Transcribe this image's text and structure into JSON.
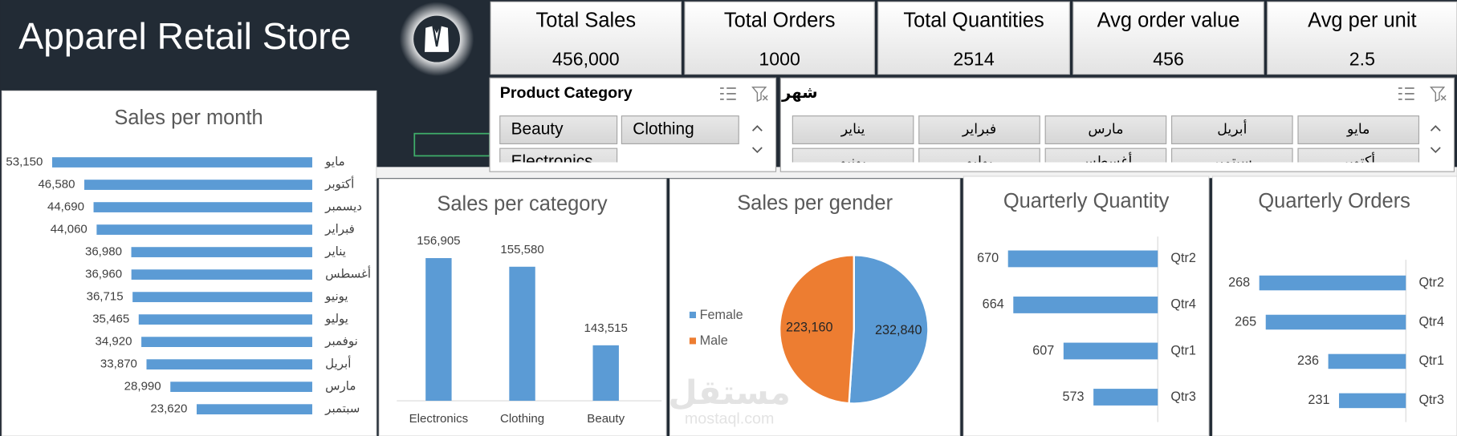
{
  "header": {
    "title": "Apparel Retail Store"
  },
  "kpis": [
    {
      "label": "Total Sales",
      "value": 456000,
      "value_label": "456,000"
    },
    {
      "label": "Total Orders",
      "value": 1000
    },
    {
      "label": "Total Quantities",
      "value": 2514
    },
    {
      "label": "Avg order value",
      "value": 456
    },
    {
      "label": "Avg per unit",
      "value": 2.5
    }
  ],
  "slicers": [
    {
      "title": "Product Category",
      "items": [
        "Beauty",
        "Clothing",
        "Electronics"
      ]
    },
    {
      "title": "شهر",
      "items": [
        "يناير",
        "فبراير",
        "مارس",
        "أبريل",
        "مايو",
        "يونيو",
        "يوليو",
        "أغسطس",
        "سبتمبر",
        "أكتوبر"
      ]
    }
  ],
  "watermark": {
    "arabic": "مستقل",
    "latin": "mostaql.com"
  },
  "chart_data": [
    {
      "type": "bar",
      "orientation": "horizontal",
      "title": "Sales per month",
      "categories": [
        "مايو",
        "أكتوبر",
        "ديسمبر",
        "فبراير",
        "يناير",
        "أغسطس",
        "يونيو",
        "يوليو",
        "نوفمبر",
        "أبريل",
        "مارس",
        "سبتمبر"
      ],
      "values": [
        53150,
        46580,
        44690,
        44060,
        36980,
        36960,
        36715,
        35465,
        34920,
        33870,
        28990,
        23620
      ],
      "value_labels": [
        "53,150",
        "46,580",
        "44,690",
        "44,060",
        "36,980",
        "36,960",
        "36,715",
        "35,465",
        "34,920",
        "33,870",
        "28,990",
        "23,620"
      ],
      "color": "#5b9bd5",
      "xlim": [
        0,
        60000
      ]
    },
    {
      "type": "bar",
      "orientation": "vertical",
      "title": "Sales per category",
      "categories": [
        "Electronics",
        "Clothing",
        "Beauty"
      ],
      "values": [
        156905,
        155580,
        143515
      ],
      "value_labels": [
        "156,905",
        "155,580",
        "143,515"
      ],
      "color": "#5b9bd5",
      "ylim": [
        135000,
        160000
      ]
    },
    {
      "type": "pie",
      "title": "Sales per gender",
      "categories": [
        "Female",
        "Male"
      ],
      "values": [
        232840,
        223160
      ],
      "value_labels": [
        "232,840",
        "223,160"
      ],
      "colors": [
        "#5b9bd5",
        "#ed7d31"
      ],
      "legend": "left"
    },
    {
      "type": "bar",
      "orientation": "horizontal",
      "title": "Quarterly  Quantity",
      "categories": [
        "Qtr2",
        "Qtr4",
        "Qtr1",
        "Qtr3"
      ],
      "values": [
        670,
        664,
        607,
        573
      ],
      "color": "#5b9bd5",
      "xlim": [
        500,
        700
      ]
    },
    {
      "type": "bar",
      "orientation": "horizontal",
      "title": "Quarterly Orders",
      "categories": [
        "Qtr2",
        "Qtr4",
        "Qtr1",
        "Qtr3"
      ],
      "values": [
        268,
        265,
        236,
        231
      ],
      "color": "#5b9bd5",
      "xlim": [
        200,
        280
      ]
    }
  ]
}
